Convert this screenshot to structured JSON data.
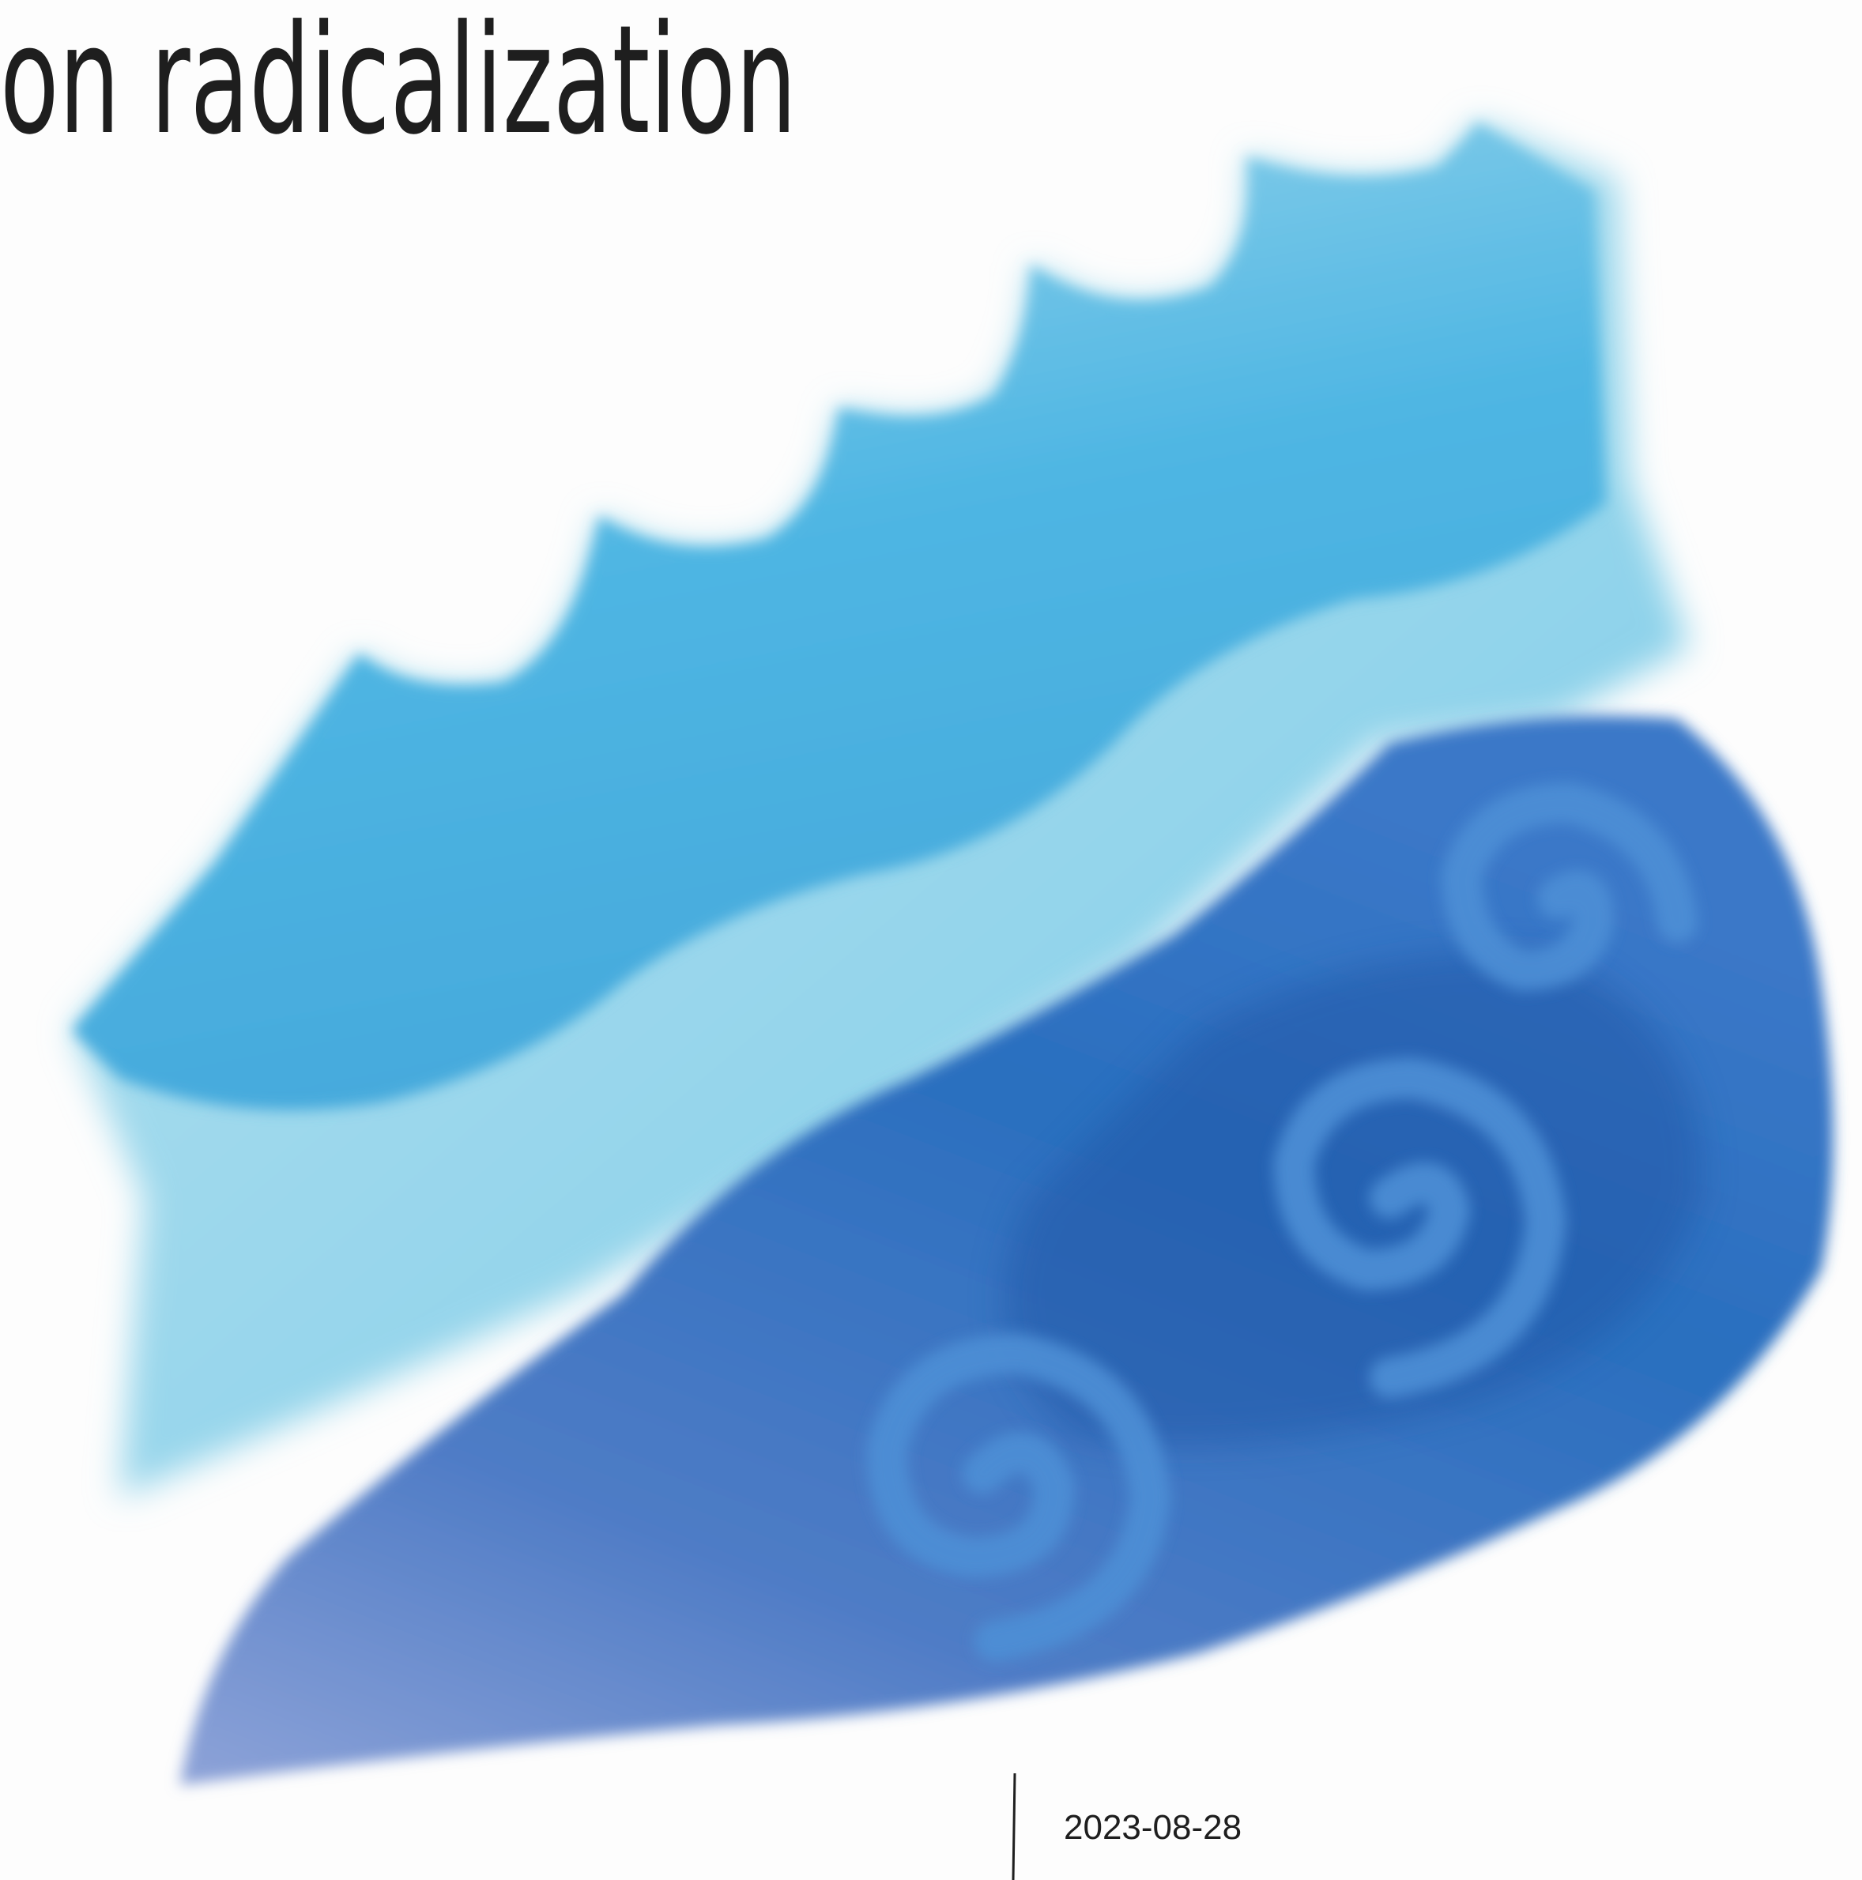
{
  "title": "on radicalization",
  "date": "2023-08-28"
}
